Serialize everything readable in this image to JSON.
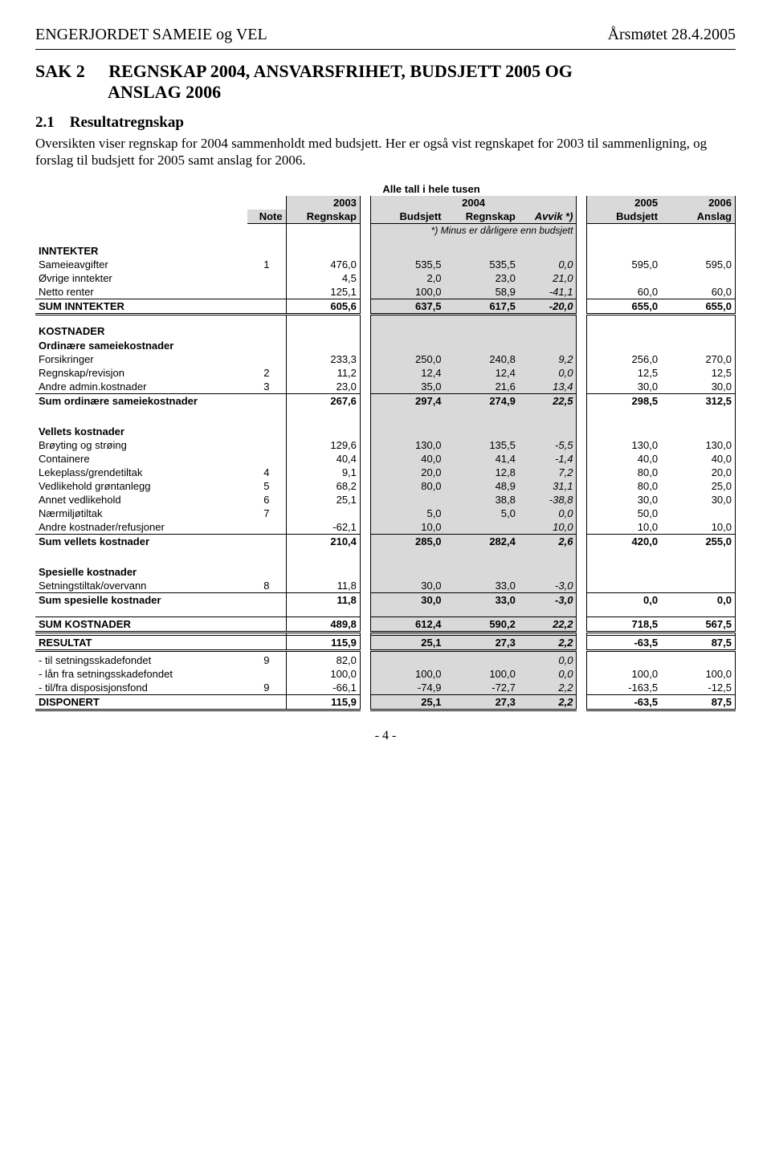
{
  "header": {
    "left": "ENGERJORDET SAMEIE og VEL",
    "right": "Årsmøtet  28.4.2005"
  },
  "sak": {
    "prefix": "SAK 2",
    "line1": "REGNSKAP 2004, ANSVARSFRIHET, BUDSJETT 2005 OG",
    "line2": "ANSLAG 2006"
  },
  "sub": {
    "num": "2.1",
    "title": "Resultatregnskap"
  },
  "body": "Oversikten viser regnskap for 2004 sammenholdt med budsjett. Her er også vist regnskapet for 2003 til sammenligning, og forslag til budsjett for 2005 samt anslag for 2006.",
  "table": {
    "caption": "Alle tall i hele tusen",
    "years": {
      "y2003": "2003",
      "y2004": "2004",
      "y2005": "2005",
      "y2006": "2006"
    },
    "heads": {
      "note": "Note",
      "regnskap": "Regnskap",
      "budsjett": "Budsjett",
      "avvik": "Avvik *)",
      "anslag": "Anslag"
    },
    "footnote": "*) Minus er dårligere enn budsjett",
    "sections": {
      "inntekter": {
        "title": "INNTEKTER",
        "rows": [
          {
            "label": "Sameieavgifter",
            "note": "1",
            "r03": "476,0",
            "b04": "535,5",
            "r04": "535,5",
            "av": "0,0",
            "b05": "595,0",
            "a06": "595,0",
            "italic_av": true
          },
          {
            "label": "Øvrige inntekter",
            "note": "",
            "r03": "4,5",
            "b04": "2,0",
            "r04": "23,0",
            "av": "21,0",
            "b05": "",
            "a06": "",
            "italic_av": true
          },
          {
            "label": "Netto renter",
            "note": "",
            "r03": "125,1",
            "b04": "100,0",
            "r04": "58,9",
            "av": "-41,1",
            "b05": "60,0",
            "a06": "60,0",
            "italic_av": true
          }
        ],
        "sum": {
          "label": "SUM INNTEKTER",
          "r03": "605,6",
          "b04": "637,5",
          "r04": "617,5",
          "av": "-20,0",
          "b05": "655,0",
          "a06": "655,0"
        }
      },
      "kostnader_title": "KOSTNADER",
      "ord": {
        "title": "Ordinære sameiekostnader",
        "rows": [
          {
            "label": "Forsikringer",
            "note": "",
            "r03": "233,3",
            "b04": "250,0",
            "r04": "240,8",
            "av": "9,2",
            "b05": "256,0",
            "a06": "270,0"
          },
          {
            "label": "Regnskap/revisjon",
            "note": "2",
            "r03": "11,2",
            "b04": "12,4",
            "r04": "12,4",
            "av": "0,0",
            "b05": "12,5",
            "a06": "12,5"
          },
          {
            "label": "Andre admin.kostnader",
            "note": "3",
            "r03": "23,0",
            "b04": "35,0",
            "r04": "21,6",
            "av": "13,4",
            "b05": "30,0",
            "a06": "30,0"
          }
        ],
        "sum": {
          "label": "Sum ordinære sameiekostnader",
          "r03": "267,6",
          "b04": "297,4",
          "r04": "274,9",
          "av": "22,5",
          "b05": "298,5",
          "a06": "312,5"
        }
      },
      "vel": {
        "title": "Vellets kostnader",
        "rows": [
          {
            "label": "Brøyting og strøing",
            "note": "",
            "r03": "129,6",
            "b04": "130,0",
            "r04": "135,5",
            "av": "-5,5",
            "b05": "130,0",
            "a06": "130,0"
          },
          {
            "label": "Containere",
            "note": "",
            "r03": "40,4",
            "b04": "40,0",
            "r04": "41,4",
            "av": "-1,4",
            "b05": "40,0",
            "a06": "40,0"
          },
          {
            "label": "Lekeplass/grendetiltak",
            "note": "4",
            "r03": "9,1",
            "b04": "20,0",
            "r04": "12,8",
            "av": "7,2",
            "b05": "80,0",
            "a06": "20,0"
          },
          {
            "label": "Vedlikehold grøntanlegg",
            "note": "5",
            "r03": "68,2",
            "b04": "80,0",
            "r04": "48,9",
            "av": "31,1",
            "b05": "80,0",
            "a06": "25,0"
          },
          {
            "label": "Annet vedlikehold",
            "note": "6",
            "r03": "25,1",
            "b04": "",
            "r04": "38,8",
            "av": "-38,8",
            "b05": "30,0",
            "a06": "30,0"
          },
          {
            "label": "Nærmiljøtiltak",
            "note": "7",
            "r03": "",
            "b04": "5,0",
            "r04": "5,0",
            "av": "0,0",
            "b05": "50,0",
            "a06": ""
          },
          {
            "label": "Andre kostnader/refusjoner",
            "note": "",
            "r03": "-62,1",
            "b04": "10,0",
            "r04": "",
            "av": "10,0",
            "b05": "10,0",
            "a06": "10,0"
          }
        ],
        "sum": {
          "label": "Sum vellets kostnader",
          "r03": "210,4",
          "b04": "285,0",
          "r04": "282,4",
          "av": "2,6",
          "b05": "420,0",
          "a06": "255,0"
        }
      },
      "spes": {
        "title": "Spesielle kostnader",
        "rows": [
          {
            "label": "Setningstiltak/overvann",
            "note": "8",
            "r03": "11,8",
            "b04": "30,0",
            "r04": "33,0",
            "av": "-3,0",
            "b05": "",
            "a06": ""
          }
        ],
        "sum": {
          "label": "Sum spesielle kostnader",
          "r03": "11,8",
          "b04": "30,0",
          "r04": "33,0",
          "av": "-3,0",
          "b05": "0,0",
          "a06": "0,0"
        }
      },
      "sumkost": {
        "label": "SUM KOSTNADER",
        "r03": "489,8",
        "b04": "612,4",
        "r04": "590,2",
        "av": "22,2",
        "b05": "718,5",
        "a06": "567,5"
      },
      "resultat": {
        "label": "RESULTAT",
        "r03": "115,9",
        "b04": "25,1",
        "r04": "27,3",
        "av": "2,2",
        "b05": "-63,5",
        "a06": "87,5"
      },
      "disp": {
        "rows": [
          {
            "label": "- til setningsskadefondet",
            "note": "9",
            "r03": "82,0",
            "b04": "",
            "r04": "",
            "av": "0,0",
            "b05": "",
            "a06": ""
          },
          {
            "label": "- lån fra setningsskadefondet",
            "note": "",
            "r03": "100,0",
            "b04": "100,0",
            "r04": "100,0",
            "av": "0,0",
            "b05": "100,0",
            "a06": "100,0"
          },
          {
            "label": "- til/fra disposisjonsfond",
            "note": "9",
            "r03": "-66,1",
            "b04": "-74,9",
            "r04": "-72,7",
            "av": "2,2",
            "b05": "-163,5",
            "a06": "-12,5"
          }
        ],
        "sum": {
          "label": "DISPONERT",
          "r03": "115,9",
          "b04": "25,1",
          "r04": "27,3",
          "av": "2,2",
          "b05": "-63,5",
          "a06": "87,5"
        }
      }
    }
  },
  "pagenum": "- 4 -"
}
